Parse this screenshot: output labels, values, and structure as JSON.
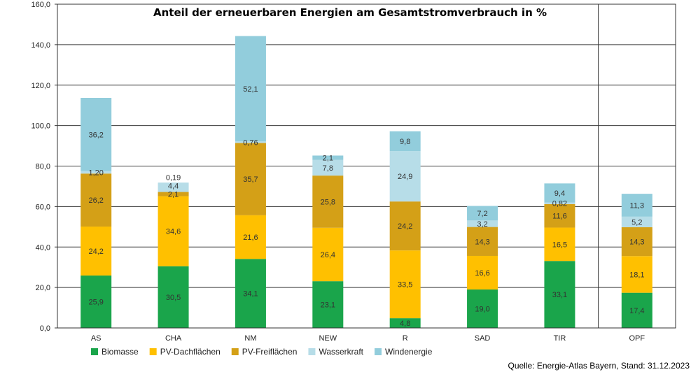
{
  "chart_data": {
    "type": "bar",
    "stacked": true,
    "title": "Anteil der erneuerbaren Energien am Gesamtstromverbrauch in %",
    "xlabel": "",
    "ylabel": "",
    "ylim": [
      0,
      160
    ],
    "yticks": [
      "0,0",
      "20,0",
      "40,0",
      "60,0",
      "80,0",
      "100,0",
      "120,0",
      "140,0",
      "160,0"
    ],
    "grid": true,
    "legend_position": "bottom",
    "categories": [
      "AS",
      "CHA",
      "NM",
      "NEW",
      "R",
      "SAD",
      "TIR",
      "OPF"
    ],
    "series": [
      {
        "name": "Biomasse",
        "color": "#1aa54b",
        "values": [
          25.9,
          30.5,
          34.1,
          23.1,
          4.8,
          19.0,
          33.1,
          17.4
        ],
        "labels": [
          "25,9",
          "30,5",
          "34,1",
          "23,1",
          "4,8",
          "19,0",
          "33,1",
          "17,4"
        ]
      },
      {
        "name": "PV-Dachflächen",
        "color": "#ffc000",
        "values": [
          24.2,
          34.6,
          21.6,
          26.4,
          33.5,
          16.6,
          16.5,
          18.1
        ],
        "labels": [
          "24,2",
          "34,6",
          "21,6",
          "26,4",
          "33,5",
          "16,6",
          "16,5",
          "18,1"
        ]
      },
      {
        "name": "PV-Freiflächen",
        "color": "#d4a017",
        "values": [
          26.2,
          2.1,
          35.7,
          25.8,
          24.2,
          14.3,
          11.6,
          14.3
        ],
        "labels": [
          "26,2",
          "2,1",
          "35,7",
          "25,8",
          "24,2",
          "14,3",
          "11,6",
          "14,3"
        ]
      },
      {
        "name": "Wasserkraft",
        "color": "#b7dde8",
        "values": [
          1.2,
          4.4,
          0.76,
          7.8,
          24.9,
          3.2,
          0.82,
          5.2
        ],
        "labels": [
          "1,20",
          "4,4",
          "0,76",
          "7,8",
          "24,9",
          "3,2",
          "0,82",
          "5,2"
        ]
      },
      {
        "name": "Windenergie",
        "color": "#92cddc",
        "values": [
          36.2,
          0.19,
          52.1,
          2.1,
          9.8,
          7.2,
          9.4,
          11.3
        ],
        "labels": [
          "36,2",
          "0,19",
          "52,1",
          "2,1",
          "9,8",
          "7,2",
          "9,4",
          "11,3"
        ]
      }
    ]
  },
  "source": "Quelle: Energie-Atlas Bayern, Stand: 31.12.2023"
}
